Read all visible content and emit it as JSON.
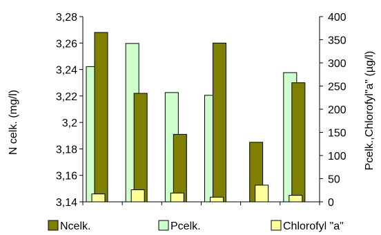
{
  "chart_data": {
    "type": "bar",
    "categories": [
      "",
      "",
      "",
      "",
      "",
      ""
    ],
    "series": [
      {
        "name": "Ncelk.",
        "axis": "left",
        "color": "#808000",
        "values": [
          3.268,
          3.222,
          3.191,
          3.26,
          3.185,
          3.23
        ]
      },
      {
        "name": "Pcelk.",
        "axis": "right",
        "color": "#ccffcc",
        "values": [
          292,
          342,
          236,
          230,
          null,
          279
        ]
      },
      {
        "name": "Chlorofyl \"a\"",
        "axis": "right",
        "color": "#ffff99",
        "values": [
          17,
          26,
          19,
          10,
          36,
          14
        ]
      }
    ],
    "ylabel_left": "N celk. (mg/l)",
    "ylabel_right": "Pcelk.,Chlorofyl\"a\" (µg/l)",
    "ylim_left": [
      3.14,
      3.28
    ],
    "ylim_right": [
      0,
      400
    ],
    "yticks_left": [
      "3,14",
      "3,16",
      "3,18",
      "3,2",
      "3,22",
      "3,24",
      "3,26",
      "3,28"
    ],
    "yticks_right": [
      "0",
      "50",
      "100",
      "150",
      "200",
      "250",
      "300",
      "350",
      "400"
    ],
    "legend_position": "bottom",
    "grid": false
  }
}
